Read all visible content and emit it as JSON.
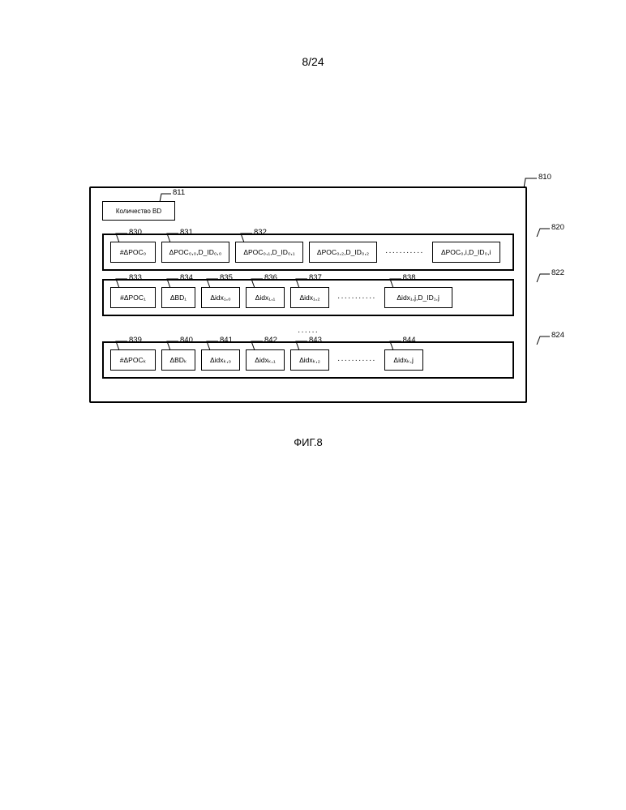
{
  "page_number": "8/24",
  "figure_caption": "ФИГ.8",
  "outer_ref": "810",
  "top_box": {
    "label": "Количество BD",
    "ref": "811"
  },
  "group0": {
    "ref": "820",
    "cells": [
      {
        "label": "#ΔPOC₀",
        "ref": "830",
        "w": "w-count"
      },
      {
        "label": "ΔPOC₀,₀,D_ID₀,₀",
        "ref": "831",
        "w": "w-poc"
      },
      {
        "label": "ΔPOC₀,₁,D_ID₀,₁",
        "ref": "832",
        "w": "w-poc"
      },
      {
        "label": "ΔPOC₀,₂,D_ID₀,₂",
        "ref": null,
        "w": "w-poc"
      }
    ],
    "tail": {
      "label": "ΔPOC₀,i,D_ID₀,i",
      "ref": null,
      "w": "w-poc"
    }
  },
  "group1": {
    "ref": "822",
    "cells": [
      {
        "label": "#ΔPOC₁",
        "ref": "833",
        "w": "w-count"
      },
      {
        "label": "ΔBD₁",
        "ref": "834",
        "w": "w-bd"
      },
      {
        "label": "Δidx₁,₀",
        "ref": "835",
        "w": "w-idx"
      },
      {
        "label": "Δidx₁,₁",
        "ref": "836",
        "w": "w-idx"
      },
      {
        "label": "Δidx₁,₂",
        "ref": "837",
        "w": "w-idx"
      }
    ],
    "tail": {
      "label": "Δidx₁,j,D_ID₁,j",
      "ref": "838",
      "w": "w-poc"
    }
  },
  "groupk": {
    "ref": "824",
    "cells": [
      {
        "label": "#ΔPOCₖ",
        "ref": "839",
        "w": "w-count"
      },
      {
        "label": "ΔBDₖ",
        "ref": "840",
        "w": "w-bd"
      },
      {
        "label": "Δidxₖ,₀",
        "ref": "841",
        "w": "w-idx"
      },
      {
        "label": "Δidxₖ,₁",
        "ref": "842",
        "w": "w-idx"
      },
      {
        "label": "Δidxₖ,₂",
        "ref": "843",
        "w": "w-idx"
      }
    ],
    "tail": {
      "label": "Δidxₖ,j",
      "ref": "844",
      "w": "w-idx"
    }
  },
  "colors": {
    "stroke": "#000000",
    "bg": "#ffffff"
  }
}
